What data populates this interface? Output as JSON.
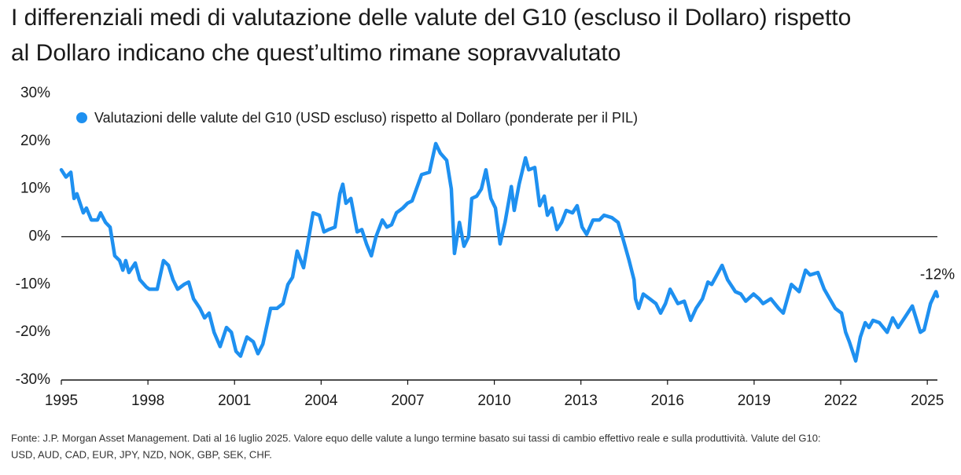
{
  "chart_data": {
    "type": "line",
    "title": [
      "I differenziali medi di valutazione delle valute del G10 (escluso il Dollaro) rispetto",
      "al Dollaro indicano che quest’ultimo rimane sopravvalutato"
    ],
    "footnote": [
      "Fonte: J.P. Morgan Asset Management. Dati al 16 luglio 2025. Valore equo delle valute a lungo termine basato sui tassi di cambio effettivo reale e sulla produttività. Valute del G10:",
      "USD, AUD, CAD, EUR, JPY, NZD, NOK, GBP, SEK, CHF."
    ],
    "annotation": "-12%",
    "xlim": [
      1995,
      2025.35
    ],
    "xticks": [
      1995,
      1998,
      2001,
      2004,
      2007,
      2010,
      2013,
      2016,
      2019,
      2022,
      2025
    ],
    "ylim": [
      -30,
      30
    ],
    "yticks": [
      {
        "value": -30,
        "label": "-30%"
      },
      {
        "value": -20,
        "label": "-20%"
      },
      {
        "value": -10,
        "label": "-10%"
      },
      {
        "value": 0,
        "label": "0%"
      },
      {
        "value": 10,
        "label": "10%"
      },
      {
        "value": 20,
        "label": "20%"
      },
      {
        "value": 30,
        "label": "30%"
      }
    ],
    "grid": false,
    "legend": "top-left",
    "x": [
      1995.0,
      1995.16,
      1995.33,
      1995.44,
      1995.54,
      1995.76,
      1995.87,
      1996.04,
      1996.25,
      1996.36,
      1996.53,
      1996.69,
      1996.85,
      1997.02,
      1997.13,
      1997.23,
      1997.34,
      1997.56,
      1997.72,
      1997.94,
      1998.05,
      1998.32,
      1998.54,
      1998.71,
      1998.87,
      1999.03,
      1999.25,
      1999.41,
      1999.58,
      1999.8,
      1999.96,
      2000.12,
      2000.29,
      2000.5,
      2000.72,
      2000.89,
      2001.05,
      2001.21,
      2001.43,
      2001.65,
      2001.81,
      2001.98,
      2002.25,
      2002.47,
      2002.68,
      2002.85,
      2003.01,
      2003.17,
      2003.39,
      2003.72,
      2003.94,
      2004.1,
      2004.26,
      2004.48,
      2004.65,
      2004.75,
      2004.86,
      2005.03,
      2005.25,
      2005.41,
      2005.57,
      2005.74,
      2005.9,
      2006.12,
      2006.28,
      2006.44,
      2006.61,
      2006.83,
      2006.99,
      2007.15,
      2007.48,
      2007.75,
      2007.97,
      2008.13,
      2008.35,
      2008.51,
      2008.62,
      2008.79,
      2008.95,
      2009.11,
      2009.22,
      2009.39,
      2009.55,
      2009.71,
      2009.88,
      2010.04,
      2010.2,
      2010.37,
      2010.59,
      2010.69,
      2010.86,
      2011.08,
      2011.19,
      2011.4,
      2011.57,
      2011.73,
      2011.84,
      2012.0,
      2012.17,
      2012.33,
      2012.49,
      2012.71,
      2012.87,
      2013.04,
      2013.2,
      2013.42,
      2013.64,
      2013.8,
      2014.07,
      2014.29,
      2014.46,
      2014.67,
      2014.84,
      2014.89,
      2015.0,
      2015.16,
      2015.38,
      2015.6,
      2015.76,
      2015.93,
      2016.09,
      2016.36,
      2016.58,
      2016.8,
      2016.99,
      2017.21,
      2017.4,
      2017.53,
      2017.89,
      2018.08,
      2018.35,
      2018.54,
      2018.71,
      2018.98,
      2019.17,
      2019.31,
      2019.58,
      2019.85,
      2020.01,
      2020.29,
      2020.56,
      2020.78,
      2020.94,
      2021.21,
      2021.43,
      2021.62,
      2021.81,
      2022.03,
      2022.17,
      2022.3,
      2022.52,
      2022.68,
      2022.85,
      2022.98,
      2023.12,
      2023.34,
      2023.61,
      2023.8,
      2023.99,
      2024.21,
      2024.48,
      2024.76,
      2024.89,
      2025.11,
      2025.3,
      2025.35
    ],
    "series": [
      {
        "name": "Valutazioni delle valute del G10 (USD escluso) rispetto al Dollaro (ponderate per il PIL)",
        "color": "#1e90f0",
        "values": [
          14,
          12.5,
          13.5,
          8,
          9,
          5,
          6,
          3.5,
          3.5,
          5,
          3,
          2,
          -4,
          -5,
          -7,
          -5,
          -7.5,
          -5.5,
          -9,
          -10.5,
          -11,
          -11,
          -5,
          -6,
          -9,
          -11,
          -10,
          -9.5,
          -13,
          -15,
          -17,
          -16,
          -20,
          -23,
          -19,
          -20,
          -24,
          -25,
          -21,
          -22,
          -24.5,
          -22.5,
          -15,
          -15,
          -14,
          -10,
          -8.5,
          -3,
          -6.5,
          5,
          4.5,
          1,
          1.5,
          2,
          9,
          11,
          7,
          8,
          1,
          1.5,
          -1.5,
          -4,
          0,
          3.5,
          2,
          2.5,
          5,
          6,
          7,
          7.5,
          13,
          13.5,
          19.5,
          17.5,
          16,
          10,
          -3.5,
          3,
          -2,
          0,
          8,
          8.5,
          10,
          14,
          8,
          6,
          -1.5,
          3,
          10.5,
          5.5,
          11,
          16.5,
          14,
          14.5,
          6.5,
          8.5,
          4.5,
          6,
          1.5,
          3,
          5.5,
          5,
          6.5,
          2,
          0.5,
          3.5,
          3.5,
          4.5,
          4,
          3,
          -0.5,
          -5,
          -9,
          -13,
          -15,
          -12,
          -13,
          -14,
          -16,
          -14,
          -11,
          -14,
          -13.5,
          -17.5,
          -15,
          -13,
          -9.5,
          -10,
          -6,
          -9,
          -11.5,
          -12,
          -13.5,
          -12,
          -13,
          -14,
          -13,
          -15,
          -16,
          -10,
          -11.5,
          -7,
          -8,
          -7.5,
          -11,
          -13,
          -15,
          -16,
          -20,
          -22,
          -26,
          -21,
          -18,
          -19,
          -17.5,
          -18,
          -20,
          -17,
          -19,
          -17,
          -14.5,
          -20,
          -19.5,
          -14,
          -11.5,
          -12.5
        ]
      }
    ]
  }
}
